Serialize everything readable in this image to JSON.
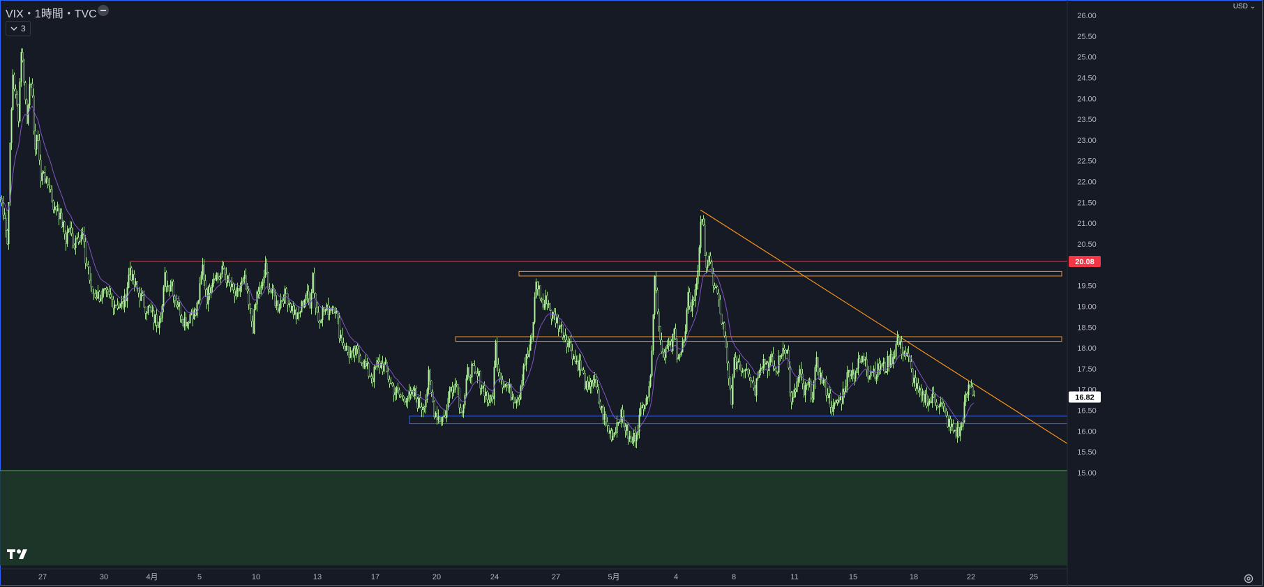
{
  "header": {
    "title": "VIX・1時間・TVC",
    "indicator_count": "3",
    "currency": "USD"
  },
  "colors": {
    "background": "#161a25",
    "candle": "#b6f2a4",
    "candle_body_dark": "#1b2f21",
    "ma": "#7e57c2",
    "resistance": "#f23645",
    "zone_orange": "#f7931a",
    "zone_blue": "#2962ff",
    "trendline": "#f7931a",
    "bottom_band": "#1e3a29",
    "bottom_band_border": "#4caf50"
  },
  "chart_data": {
    "type": "candlestick",
    "title": "VIX・1時間・TVC",
    "y_axis": {
      "min": 14.9,
      "max": 26.15,
      "ticks": [
        "26.00",
        "25.50",
        "25.00",
        "24.50",
        "24.00",
        "23.50",
        "23.00",
        "22.50",
        "22.00",
        "21.50",
        "21.00",
        "20.50",
        "19.50",
        "19.00",
        "18.50",
        "18.00",
        "17.50",
        "17.00",
        "16.50",
        "16.00",
        "15.50",
        "15.00"
      ]
    },
    "x_axis": {
      "labels": [
        "27",
        "30",
        "4月",
        "5",
        "10",
        "13",
        "17",
        "20",
        "24",
        "27",
        "5月",
        "4",
        "8",
        "11",
        "15",
        "18",
        "22",
        "25"
      ]
    },
    "price_labels": [
      {
        "value": 20.08,
        "text": "20.08",
        "color": "#f23645"
      },
      {
        "value": 16.82,
        "text": "16.82",
        "color": "#ffffff"
      }
    ],
    "close_path": [
      [
        0,
        21.6
      ],
      [
        6,
        21.2
      ],
      [
        10,
        20.5
      ],
      [
        14,
        22.8
      ],
      [
        18,
        24.6
      ],
      [
        22,
        24.0
      ],
      [
        26,
        23.6
      ],
      [
        30,
        25.2
      ],
      [
        34,
        24.5
      ],
      [
        38,
        23.4
      ],
      [
        42,
        24.5
      ],
      [
        46,
        23.9
      ],
      [
        50,
        22.8
      ],
      [
        54,
        23.1
      ],
      [
        58,
        22.0
      ],
      [
        62,
        22.3
      ],
      [
        66,
        21.9
      ],
      [
        70,
        22.0
      ],
      [
        74,
        21.6
      ],
      [
        78,
        21.3
      ],
      [
        82,
        21.4
      ],
      [
        86,
        21.1
      ],
      [
        90,
        20.9
      ],
      [
        94,
        20.6
      ],
      [
        98,
        20.9
      ],
      [
        102,
        20.7
      ],
      [
        106,
        20.5
      ],
      [
        110,
        20.8
      ],
      [
        114,
        20.6
      ],
      [
        118,
        20.7
      ],
      [
        122,
        20.1
      ],
      [
        126,
        19.95
      ],
      [
        130,
        19.35
      ],
      [
        136,
        19.3
      ],
      [
        142,
        19.25
      ],
      [
        148,
        19.3
      ],
      [
        156,
        19.2
      ],
      [
        164,
        19.1
      ],
      [
        172,
        19.0
      ],
      [
        178,
        19.1
      ],
      [
        182,
        19.5
      ],
      [
        186,
        19.95
      ],
      [
        190,
        19.6
      ],
      [
        196,
        19.4
      ],
      [
        202,
        19.2
      ],
      [
        208,
        19.0
      ],
      [
        214,
        18.9
      ],
      [
        220,
        18.7
      ],
      [
        226,
        18.65
      ],
      [
        232,
        19.0
      ],
      [
        236,
        19.7
      ],
      [
        240,
        19.5
      ],
      [
        246,
        19.6
      ],
      [
        250,
        19.2
      ],
      [
        256,
        19.0
      ],
      [
        262,
        18.7
      ],
      [
        268,
        18.65
      ],
      [
        274,
        18.9
      ],
      [
        280,
        18.8
      ],
      [
        286,
        19.4
      ],
      [
        290,
        19.95
      ],
      [
        296,
        19.2
      ],
      [
        302,
        19.6
      ],
      [
        308,
        19.8
      ],
      [
        314,
        19.7
      ],
      [
        320,
        19.9
      ],
      [
        326,
        19.6
      ],
      [
        332,
        19.4
      ],
      [
        338,
        19.2
      ],
      [
        344,
        19.5
      ],
      [
        350,
        19.6
      ],
      [
        356,
        19.0
      ],
      [
        362,
        18.5
      ],
      [
        368,
        19.3
      ],
      [
        374,
        19.4
      ],
      [
        380,
        19.9
      ],
      [
        386,
        19.4
      ],
      [
        392,
        19.2
      ],
      [
        398,
        19.0
      ],
      [
        404,
        19.2
      ],
      [
        410,
        19.3
      ],
      [
        416,
        19.0
      ],
      [
        420,
        18.9
      ],
      [
        426,
        18.7
      ],
      [
        432,
        19.0
      ],
      [
        438,
        19.3
      ],
      [
        444,
        19.1
      ],
      [
        448,
        19.8
      ],
      [
        452,
        19.0
      ],
      [
        456,
        18.7
      ],
      [
        462,
        18.9
      ],
      [
        468,
        18.9
      ],
      [
        474,
        19.0
      ],
      [
        480,
        19.0
      ],
      [
        486,
        18.4
      ],
      [
        492,
        18.1
      ],
      [
        498,
        17.9
      ],
      [
        504,
        17.8
      ],
      [
        510,
        17.9
      ],
      [
        516,
        17.8
      ],
      [
        522,
        17.6
      ],
      [
        528,
        17.4
      ],
      [
        534,
        17.3
      ],
      [
        540,
        17.6
      ],
      [
        546,
        17.6
      ],
      [
        552,
        17.5
      ],
      [
        558,
        17.2
      ],
      [
        564,
        17.0
      ],
      [
        570,
        16.9
      ],
      [
        576,
        16.8
      ],
      [
        582,
        16.85
      ],
      [
        588,
        16.8
      ],
      [
        594,
        16.9
      ],
      [
        598,
        16.7
      ],
      [
        604,
        16.6
      ],
      [
        610,
        16.8
      ],
      [
        614,
        17.3
      ],
      [
        618,
        16.9
      ],
      [
        622,
        16.5
      ],
      [
        626,
        16.4
      ],
      [
        630,
        16.3
      ],
      [
        636,
        16.35
      ],
      [
        640,
        16.5
      ],
      [
        646,
        17.2
      ],
      [
        650,
        17.0
      ],
      [
        654,
        17.3
      ],
      [
        658,
        16.7
      ],
      [
        662,
        16.5
      ],
      [
        666,
        16.8
      ],
      [
        670,
        17.4
      ],
      [
        676,
        17.5
      ],
      [
        680,
        17.3
      ],
      [
        686,
        17.3
      ],
      [
        690,
        17.1
      ],
      [
        694,
        17.0
      ],
      [
        698,
        16.8
      ],
      [
        702,
        16.7
      ],
      [
        706,
        16.9
      ],
      [
        710,
        18.05
      ],
      [
        714,
        17.5
      ],
      [
        720,
        17.2
      ],
      [
        726,
        17.1
      ],
      [
        732,
        16.9
      ],
      [
        738,
        16.8
      ],
      [
        744,
        16.9
      ],
      [
        750,
        17.6
      ],
      [
        756,
        17.8
      ],
      [
        762,
        18.2
      ],
      [
        768,
        19.6
      ],
      [
        772,
        19.4
      ],
      [
        778,
        19.0
      ],
      [
        784,
        19.2
      ],
      [
        790,
        18.8
      ],
      [
        796,
        18.7
      ],
      [
        800,
        18.6
      ],
      [
        806,
        18.4
      ],
      [
        812,
        18.2
      ],
      [
        818,
        18.0
      ],
      [
        824,
        17.7
      ],
      [
        830,
        17.6
      ],
      [
        836,
        17.3
      ],
      [
        842,
        16.9
      ],
      [
        848,
        17.3
      ],
      [
        854,
        17.0
      ],
      [
        860,
        16.6
      ],
      [
        866,
        16.3
      ],
      [
        872,
        16.0
      ],
      [
        878,
        15.9
      ],
      [
        884,
        16.2
      ],
      [
        888,
        16.4
      ],
      [
        892,
        16.3
      ],
      [
        898,
        16.0
      ],
      [
        904,
        15.7
      ],
      [
        910,
        15.9
      ],
      [
        916,
        16.3
      ],
      [
        922,
        16.7
      ],
      [
        926,
        16.9
      ],
      [
        930,
        16.9
      ],
      [
        934,
        18.1
      ],
      [
        938,
        19.7
      ],
      [
        942,
        19.0
      ],
      [
        946,
        18.2
      ],
      [
        950,
        17.9
      ],
      [
        956,
        18.0
      ],
      [
        962,
        18.0
      ],
      [
        966,
        18.4
      ],
      [
        970,
        17.9
      ],
      [
        976,
        17.9
      ],
      [
        982,
        18.3
      ],
      [
        986,
        19.2
      ],
      [
        990,
        19.0
      ],
      [
        996,
        19.3
      ],
      [
        1000,
        19.9
      ],
      [
        1004,
        21.1
      ],
      [
        1008,
        20.8
      ],
      [
        1012,
        20.0
      ],
      [
        1016,
        20.1
      ],
      [
        1020,
        19.7
      ],
      [
        1024,
        19.5
      ],
      [
        1028,
        19.3
      ],
      [
        1032,
        18.8
      ],
      [
        1036,
        18.5
      ],
      [
        1040,
        17.9
      ],
      [
        1044,
        17.2
      ],
      [
        1048,
        16.8
      ],
      [
        1052,
        17.6
      ],
      [
        1058,
        17.7
      ],
      [
        1064,
        17.5
      ],
      [
        1070,
        17.6
      ],
      [
        1076,
        17.3
      ],
      [
        1082,
        17.0
      ],
      [
        1088,
        17.6
      ],
      [
        1094,
        17.7
      ],
      [
        1100,
        17.6
      ],
      [
        1106,
        17.7
      ],
      [
        1112,
        17.4
      ],
      [
        1118,
        17.8
      ],
      [
        1124,
        18.1
      ],
      [
        1128,
        17.9
      ],
      [
        1134,
        16.6
      ],
      [
        1140,
        17.0
      ],
      [
        1146,
        17.4
      ],
      [
        1152,
        16.9
      ],
      [
        1158,
        17.1
      ],
      [
        1164,
        16.9
      ],
      [
        1170,
        17.6
      ],
      [
        1176,
        17.3
      ],
      [
        1182,
        17.1
      ],
      [
        1188,
        16.8
      ],
      [
        1194,
        16.5
      ],
      [
        1200,
        16.7
      ],
      [
        1206,
        16.8
      ],
      [
        1212,
        17.2
      ],
      [
        1218,
        17.5
      ],
      [
        1224,
        17.4
      ],
      [
        1230,
        17.6
      ],
      [
        1236,
        17.7
      ],
      [
        1240,
        17.8
      ],
      [
        1244,
        17.4
      ],
      [
        1250,
        17.5
      ],
      [
        1256,
        17.4
      ],
      [
        1262,
        17.6
      ],
      [
        1268,
        17.5
      ],
      [
        1274,
        17.7
      ],
      [
        1280,
        17.8
      ],
      [
        1286,
        18.2
      ],
      [
        1290,
        18.0
      ],
      [
        1296,
        17.9
      ],
      [
        1302,
        17.7
      ],
      [
        1308,
        17.3
      ],
      [
        1314,
        17.0
      ],
      [
        1320,
        16.8
      ],
      [
        1326,
        16.8
      ],
      [
        1332,
        16.7
      ],
      [
        1338,
        16.8
      ],
      [
        1344,
        16.7
      ],
      [
        1350,
        16.6
      ],
      [
        1356,
        16.3
      ],
      [
        1362,
        16.1
      ],
      [
        1368,
        16.0
      ],
      [
        1374,
        15.95
      ],
      [
        1378,
        16.1
      ],
      [
        1382,
        16.6
      ],
      [
        1386,
        16.9
      ],
      [
        1390,
        17.1
      ],
      [
        1394,
        16.95
      ],
      [
        1398,
        16.82
      ]
    ],
    "horizontal_lines": [
      {
        "kind": "resistance",
        "value": 20.08,
        "x_from": 186,
        "x_to": 1530
      }
    ],
    "zones": [
      {
        "kind": "orange-zone-upper",
        "from": 19.73,
        "to": 19.84,
        "x_from": 744,
        "x_to": 1522
      },
      {
        "kind": "orange-zone-middle",
        "from": 18.16,
        "to": 18.27,
        "x_from": 653,
        "x_to": 1522
      },
      {
        "kind": "blue-zone",
        "from": 16.18,
        "to": 16.36,
        "x_from": 587,
        "x_to": 1530
      }
    ],
    "trendline": {
      "x1": 1004,
      "y1": 21.32,
      "x2": 1530,
      "y2": 15.7
    },
    "bottom_band": {
      "value": 15.05
    }
  }
}
